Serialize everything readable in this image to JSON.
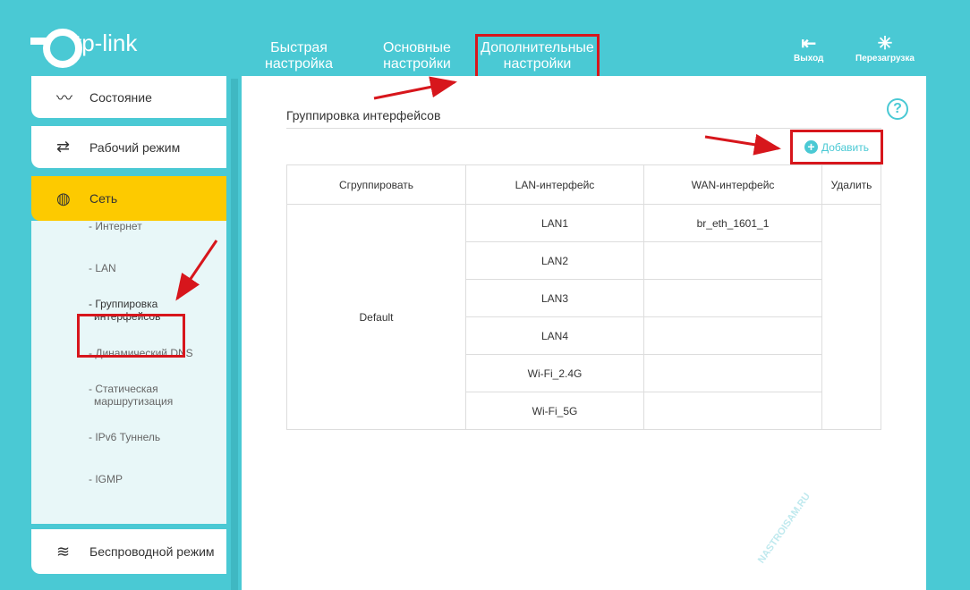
{
  "header": {
    "logo": "tp-link",
    "nav": [
      {
        "label1": "Быстрая",
        "label2": "настройка"
      },
      {
        "label1": "Основные",
        "label2": "настройки"
      },
      {
        "label1": "Дополнительные",
        "label2": "настройки"
      }
    ],
    "logout": "Выход",
    "reboot": "Перезагрузка"
  },
  "sidebar": {
    "items": [
      {
        "label": "Состояние",
        "icon": "pulse-icon"
      },
      {
        "label": "Рабочий режим",
        "icon": "swap-icon"
      },
      {
        "label": "Сеть",
        "icon": "globe-icon"
      },
      {
        "label": "Беспроводной режим",
        "icon": "wifi-icon"
      }
    ],
    "sub": [
      "- Интернет",
      "- LAN",
      "- Группировка",
      "интерфейсов",
      "- Динамический DNS",
      "- Статическая",
      "маршрутизация",
      "- IPv6 Туннель",
      "- IGMP"
    ]
  },
  "main": {
    "title": "Группировка интерфейсов",
    "add": "Добавить",
    "help": "?",
    "columns": [
      "Сгруппировать",
      "LAN-интерфейс",
      "WAN-интерфейс",
      "Удалить"
    ],
    "group": "Default",
    "lan": [
      "LAN1",
      "LAN2",
      "LAN3",
      "LAN4",
      "Wi-Fi_2.4G",
      "Wi-Fi_5G"
    ],
    "wan": [
      "br_eth_1601_1",
      "",
      "",
      "",
      "",
      ""
    ]
  },
  "watermark": "NASTROISAM.RU",
  "colors": {
    "brand": "#4ac9d4",
    "active": "#fdca00",
    "highlight": "#d7161c"
  }
}
